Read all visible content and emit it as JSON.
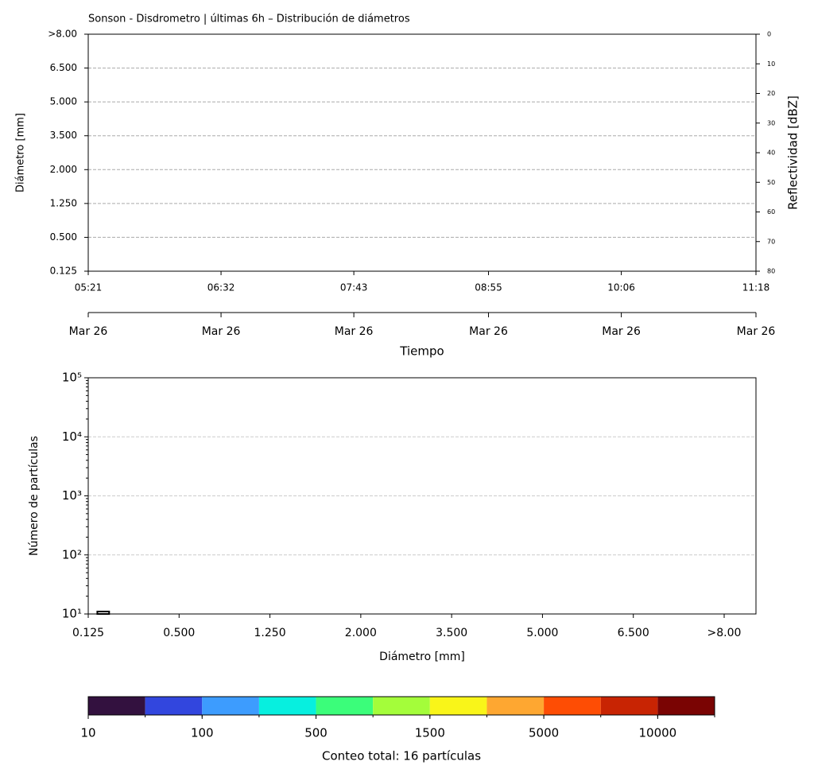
{
  "chart_data": [
    {
      "type": "heatmap",
      "title": "Sonson - Disdrometro | últimas 6h – Distribución de diámetros",
      "ylabel": "Diámetro [mm]",
      "y2label": "Reflectividad [dBZ]",
      "xlabel": "Tiempo",
      "xlim": [
        321,
        678
      ],
      "xticks": [
        {
          "value": 321,
          "label": "05:21"
        },
        {
          "value": 392,
          "label": "06:32"
        },
        {
          "value": 463,
          "label": "07:43"
        },
        {
          "value": 535,
          "label": "08:55"
        },
        {
          "value": 606,
          "label": "10:06"
        },
        {
          "value": 678,
          "label": "11:18"
        }
      ],
      "x2ticks": [
        {
          "value": 321,
          "label": "Mar 26"
        },
        {
          "value": 392,
          "label": "Mar 26"
        },
        {
          "value": 463,
          "label": "Mar 26"
        },
        {
          "value": 535,
          "label": "Mar 26"
        },
        {
          "value": 606,
          "label": "Mar 26"
        },
        {
          "value": 678,
          "label": "Mar 26"
        }
      ],
      "ylim": [
        0,
        7
      ],
      "yticks": [
        {
          "value": 0,
          "label": "0.125"
        },
        {
          "value": 1,
          "label": "0.500"
        },
        {
          "value": 2,
          "label": "1.250"
        },
        {
          "value": 3,
          "label": "2.000"
        },
        {
          "value": 4,
          "label": "3.500"
        },
        {
          "value": 5,
          "label": "5.000"
        },
        {
          "value": 6,
          "label": "6.500"
        },
        {
          "value": 7,
          "label": ">8.00"
        }
      ],
      "y2lim": [
        80,
        0
      ],
      "y2ticks": [
        0,
        10,
        20,
        30,
        40,
        50,
        60,
        70,
        80
      ],
      "grid": true
    },
    {
      "type": "histogram",
      "ylabel": "Número de partículas",
      "xlabel": "Diámetro [mm]",
      "bins": [
        0.1,
        0.23
      ],
      "counts": [
        11
      ],
      "color": "#000000",
      "xlim": [
        0,
        7.35
      ],
      "xticks": [
        {
          "value": 0,
          "label": "0.125"
        },
        {
          "value": 1,
          "label": "0.500"
        },
        {
          "value": 2,
          "label": "1.250"
        },
        {
          "value": 3,
          "label": "2.000"
        },
        {
          "value": 4,
          "label": "3.500"
        },
        {
          "value": 5,
          "label": "5.000"
        },
        {
          "value": 6,
          "label": "6.500"
        },
        {
          "value": 7,
          "label": ">8.00"
        }
      ],
      "log_y": true,
      "ylim": [
        10,
        100000
      ],
      "yticks": [
        {
          "value": 10,
          "label": "10¹"
        },
        {
          "value": 100,
          "label": "10²"
        },
        {
          "value": 1000,
          "label": "10³"
        },
        {
          "value": 10000,
          "label": "10⁴"
        },
        {
          "value": 100000,
          "label": "10⁵"
        }
      ],
      "grid": true
    },
    {
      "type": "colorbar",
      "xlabel": "Conteo total: 16 partículas",
      "colors": [
        "#33113f",
        "#3246de",
        "#3d9cfe",
        "#07efdf",
        "#3bfd7a",
        "#a4fd3a",
        "#f9f519",
        "#fea731",
        "#fe4d04",
        "#c82403",
        "#7a0403"
      ],
      "xlim": [
        0,
        11
      ],
      "xticks": [
        {
          "value": 0,
          "label": "10"
        },
        {
          "value": 2,
          "label": "100"
        },
        {
          "value": 4,
          "label": "500"
        },
        {
          "value": 6,
          "label": "1500"
        },
        {
          "value": 8,
          "label": "5000"
        },
        {
          "value": 10,
          "label": "10000"
        }
      ]
    }
  ]
}
